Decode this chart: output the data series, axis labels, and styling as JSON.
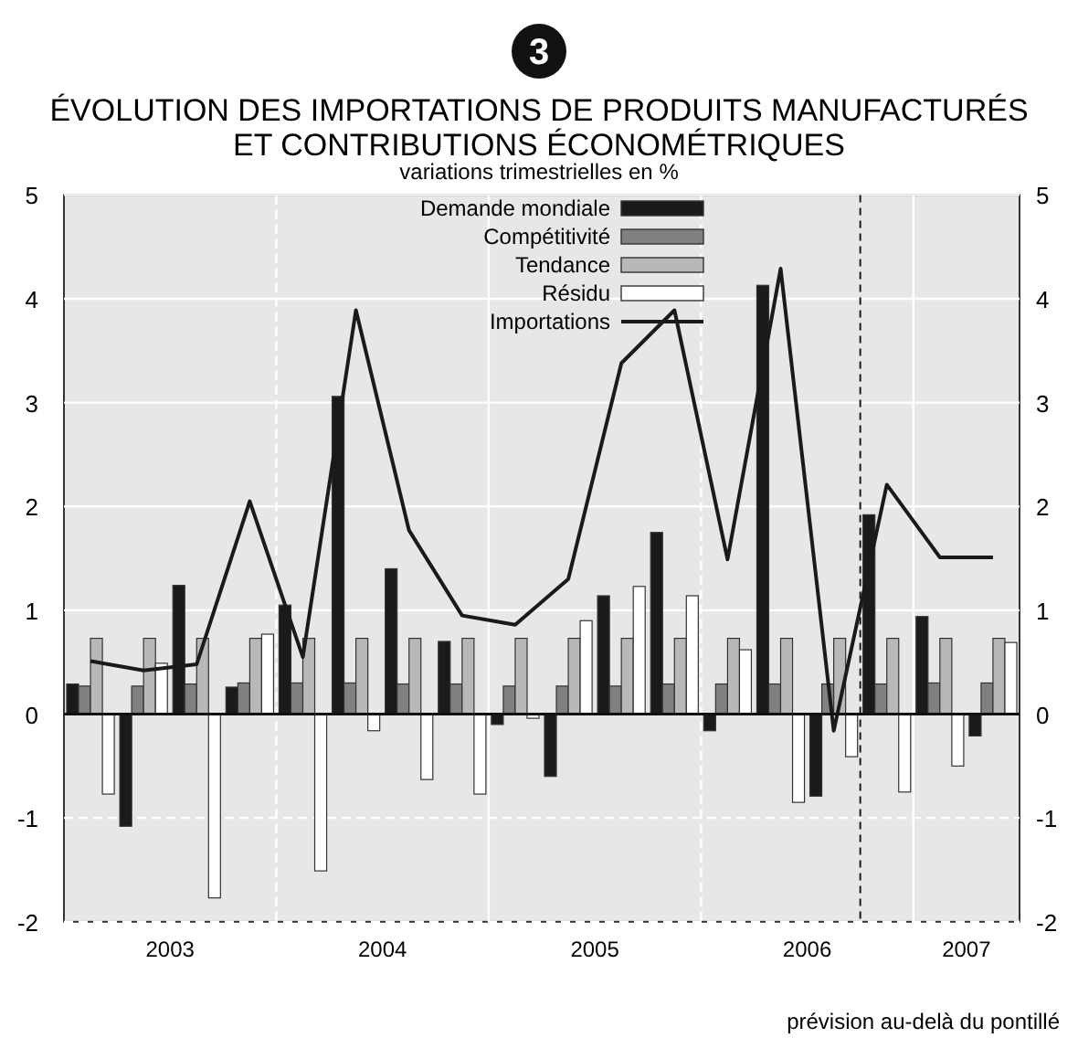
{
  "chart_data": {
    "type": "bar",
    "title": "ÉVOLUTION DES IMPORTATIONS DE PRODUITS MANUFACTURÉS\nET CONTRIBUTIONS ÉCONOMÉTRIQUES",
    "subtitle": "variations trimestrielles en %",
    "x": [
      2003.125,
      2003.375,
      2003.625,
      2003.875,
      2004.125,
      2004.375,
      2004.625,
      2004.875,
      2005.125,
      2005.375,
      2005.625,
      2005.875,
      2006.125,
      2006.375,
      2006.625,
      2006.875,
      2007.125,
      2007.375
    ],
    "xlim": [
      2003,
      2007.5
    ],
    "xticks": [
      {
        "value": 2003.5,
        "label": "2003"
      },
      {
        "value": 2004,
        "label": null
      },
      {
        "value": 2004.5,
        "label": "2004"
      },
      {
        "value": 2005,
        "label": null
      },
      {
        "value": 2005.5,
        "label": "2005"
      },
      {
        "value": 2006,
        "label": null
      },
      {
        "value": 2006.5,
        "label": "2006"
      },
      {
        "value": 2007,
        "label": null
      },
      {
        "value": 2007.25,
        "label": "2007"
      }
    ],
    "ylim": [
      -2,
      5
    ],
    "yticks": [
      -2,
      -1,
      0,
      1,
      2,
      3,
      4,
      5
    ],
    "y2lim": [
      -2,
      5
    ],
    "y2ticks": [
      -2,
      -1,
      0,
      1,
      2,
      3,
      4,
      5
    ],
    "grid": true,
    "legend": "top",
    "series": [
      {
        "name": "Demande mondiale",
        "color": "#1a1a1a",
        "values": [
          0.29,
          -1.08,
          1.24,
          0.26,
          1.05,
          3.06,
          1.4,
          0.7,
          -0.1,
          -0.6,
          1.14,
          1.75,
          -0.16,
          4.13,
          -0.79,
          1.92,
          0.94,
          -0.21
        ]
      },
      {
        "name": "Compétitivité",
        "color": "#808080",
        "values": [
          0.27,
          0.27,
          0.29,
          0.3,
          0.3,
          0.3,
          0.29,
          0.29,
          0.27,
          0.27,
          0.27,
          0.29,
          0.29,
          0.29,
          0.29,
          0.29,
          0.3,
          0.3
        ]
      },
      {
        "name": "Tendance",
        "color": "#b8b8b8",
        "values": [
          0.73,
          0.73,
          0.73,
          0.73,
          0.73,
          0.73,
          0.73,
          0.73,
          0.73,
          0.73,
          0.73,
          0.73,
          0.73,
          0.73,
          0.73,
          0.73,
          0.73,
          0.73
        ]
      },
      {
        "name": "Résidu",
        "color": "#ffffff",
        "values": [
          -0.77,
          0.49,
          -1.77,
          0.77,
          -1.51,
          -0.16,
          -0.63,
          -0.77,
          -0.04,
          0.9,
          1.23,
          1.14,
          0.62,
          -0.85,
          -0.41,
          -0.75,
          -0.5,
          0.69
        ]
      },
      {
        "name": "Importations",
        "type": "line",
        "color": "#1a1a1a",
        "values": [
          0.51,
          0.42,
          0.48,
          2.05,
          0.55,
          3.89,
          1.77,
          0.95,
          0.86,
          1.3,
          3.38,
          3.89,
          1.49,
          4.29,
          -0.16,
          2.21,
          1.51,
          1.51
        ]
      }
    ],
    "ref_lines": [
      {
        "axis": "x",
        "value": 2006.75,
        "color": "#1a1a1a",
        "line_style": "dashed"
      }
    ],
    "annotations": [
      "3",
      "prévision au-delà du pontillé"
    ]
  }
}
